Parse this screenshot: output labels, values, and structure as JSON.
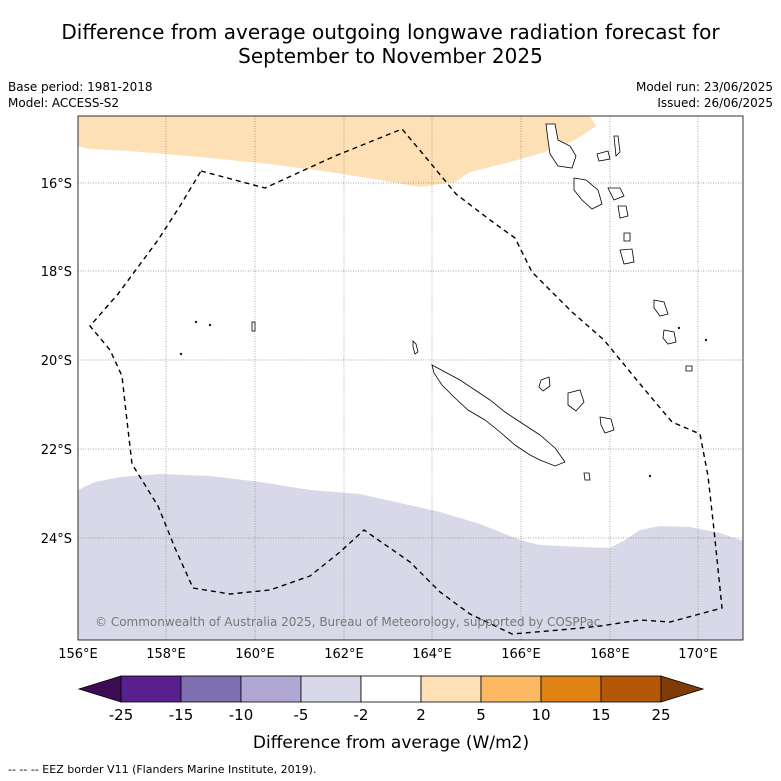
{
  "title": {
    "line1": "Difference from average outgoing longwave radiation forecast for",
    "line2": "September to November 2025"
  },
  "meta": {
    "base_period": "Base period: 1981-2018",
    "model": "Model: ACCESS-S2",
    "model_run": "Model run: 23/06/2025",
    "issued": "Issued: 26/06/2025"
  },
  "map": {
    "lon_labels": [
      "156°E",
      "158°E",
      "160°E",
      "162°E",
      "164°E",
      "166°E",
      "168°E",
      "170°E"
    ],
    "lat_labels": [
      "16°S",
      "18°S",
      "20°S",
      "22°S",
      "24°S"
    ],
    "copyright": "© Commonwealth of Australia 2025, Bureau of Meteorology, supported by COSPPac",
    "colors": {
      "positive_2_5": "#fde0b5",
      "negative_2_5": "#d8d8e8",
      "eez_line": "#000000",
      "grid": "#888888"
    }
  },
  "colorbar": {
    "tick_labels": [
      "-25",
      "-15",
      "-10",
      "-5",
      "-2",
      "2",
      "5",
      "10",
      "15",
      "25"
    ],
    "colors": [
      "#3e0b55",
      "#58208e",
      "#7e6fb0",
      "#b1a7d3",
      "#d8d8e8",
      "#ffffff",
      "#fde0b5",
      "#fdb863",
      "#e08214",
      "#b35806",
      "#7f3b08"
    ],
    "label": "Difference from average (W/m2)"
  },
  "footnote": "--  --  -- EEZ border V11 (Flanders Marine Institute, 2019)."
}
